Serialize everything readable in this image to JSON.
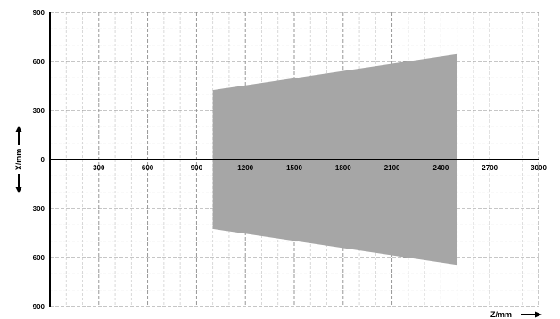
{
  "chart_data": {
    "type": "area",
    "x_axis": {
      "label": "Z/mm",
      "range": [
        0,
        3000
      ],
      "tick_values": [
        300,
        600,
        900,
        1200,
        1500,
        1800,
        2100,
        2400,
        2700,
        3000
      ],
      "tick_labels": [
        "300",
        "600",
        "900",
        "1200",
        "1500",
        "1800",
        "2100",
        "2400",
        "2700",
        "3000"
      ],
      "arrow_direction": "right"
    },
    "y_axis": {
      "label": "X/mm",
      "range": [
        -900,
        900
      ],
      "tick_values": [
        900,
        600,
        300,
        0,
        -300,
        -600,
        -900
      ],
      "tick_labels": [
        "900",
        "600",
        "300",
        "0",
        "300",
        "600",
        "900"
      ],
      "arrow_direction": "up-and-down"
    },
    "field_of_view": {
      "polygon": [
        {
          "z": 1000,
          "x": 425
        },
        {
          "z": 2500,
          "x": 645
        },
        {
          "z": 2500,
          "x": -645
        },
        {
          "z": 1000,
          "x": -425
        }
      ],
      "fill_color": "#a6a6a6"
    },
    "grid": {
      "major": true,
      "minor": true,
      "major_color": "#8c8c8c",
      "minor_color": "#cfcfcf"
    }
  }
}
